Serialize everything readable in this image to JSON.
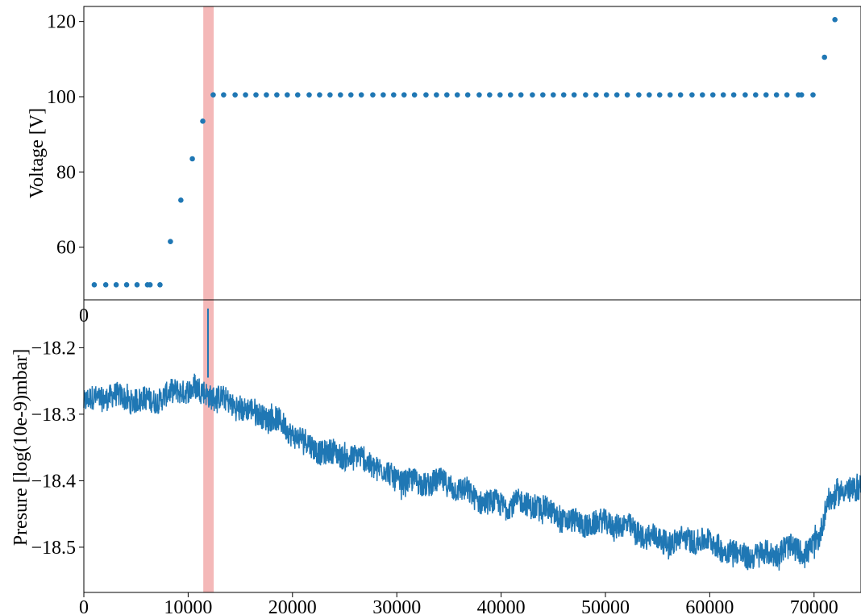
{
  "chart_data": [
    {
      "type": "scatter",
      "ylabel": "Voltage [V]",
      "xlabel": "",
      "xlim": [
        0,
        74500
      ],
      "ylim": [
        46,
        124
      ],
      "y_ticks": [
        "60",
        "80",
        "100",
        "120"
      ],
      "x_ticks_visible": [
        "0"
      ],
      "marker_color": "#1f77b4",
      "points": [
        {
          "x": 1000,
          "y": 50
        },
        {
          "x": 2100,
          "y": 50
        },
        {
          "x": 3100,
          "y": 50
        },
        {
          "x": 4100,
          "y": 50
        },
        {
          "x": 5100,
          "y": 50
        },
        {
          "x": 6100,
          "y": 50
        },
        {
          "x": 6350,
          "y": 50
        },
        {
          "x": 7300,
          "y": 50
        },
        {
          "x": 8300,
          "y": 61.5
        },
        {
          "x": 9300,
          "y": 72.5
        },
        {
          "x": 10400,
          "y": 83.5
        },
        {
          "x": 11400,
          "y": 93.5
        },
        {
          "x": 12400,
          "y": 100.5
        },
        {
          "x": 13400,
          "y": 100.5
        },
        {
          "x": 14500,
          "y": 100.5
        },
        {
          "x": 15500,
          "y": 100.5
        },
        {
          "x": 16500,
          "y": 100.5
        },
        {
          "x": 17500,
          "y": 100.5
        },
        {
          "x": 18500,
          "y": 100.5
        },
        {
          "x": 19500,
          "y": 100.5
        },
        {
          "x": 20500,
          "y": 100.5
        },
        {
          "x": 21600,
          "y": 100.5
        },
        {
          "x": 22600,
          "y": 100.5
        },
        {
          "x": 23600,
          "y": 100.5
        },
        {
          "x": 24600,
          "y": 100.5
        },
        {
          "x": 25600,
          "y": 100.5
        },
        {
          "x": 26600,
          "y": 100.5
        },
        {
          "x": 27700,
          "y": 100.5
        },
        {
          "x": 28700,
          "y": 100.5
        },
        {
          "x": 29700,
          "y": 100.5
        },
        {
          "x": 30700,
          "y": 100.5
        },
        {
          "x": 31700,
          "y": 100.5
        },
        {
          "x": 32800,
          "y": 100.5
        },
        {
          "x": 33800,
          "y": 100.5
        },
        {
          "x": 34800,
          "y": 100.5
        },
        {
          "x": 35800,
          "y": 100.5
        },
        {
          "x": 36800,
          "y": 100.5
        },
        {
          "x": 37900,
          "y": 100.5
        },
        {
          "x": 38900,
          "y": 100.5
        },
        {
          "x": 39900,
          "y": 100.5
        },
        {
          "x": 40900,
          "y": 100.5
        },
        {
          "x": 41900,
          "y": 100.5
        },
        {
          "x": 43000,
          "y": 100.5
        },
        {
          "x": 44000,
          "y": 100.5
        },
        {
          "x": 45000,
          "y": 100.5
        },
        {
          "x": 46000,
          "y": 100.5
        },
        {
          "x": 47000,
          "y": 100.5
        },
        {
          "x": 48100,
          "y": 100.5
        },
        {
          "x": 49100,
          "y": 100.5
        },
        {
          "x": 50100,
          "y": 100.5
        },
        {
          "x": 51100,
          "y": 100.5
        },
        {
          "x": 52100,
          "y": 100.5
        },
        {
          "x": 53200,
          "y": 100.5
        },
        {
          "x": 54200,
          "y": 100.5
        },
        {
          "x": 55200,
          "y": 100.5
        },
        {
          "x": 56200,
          "y": 100.5
        },
        {
          "x": 57200,
          "y": 100.5
        },
        {
          "x": 58300,
          "y": 100.5
        },
        {
          "x": 59300,
          "y": 100.5
        },
        {
          "x": 60300,
          "y": 100.5
        },
        {
          "x": 61300,
          "y": 100.5
        },
        {
          "x": 62300,
          "y": 100.5
        },
        {
          "x": 63400,
          "y": 100.5
        },
        {
          "x": 64400,
          "y": 100.5
        },
        {
          "x": 65400,
          "y": 100.5
        },
        {
          "x": 66400,
          "y": 100.5
        },
        {
          "x": 67400,
          "y": 100.5
        },
        {
          "x": 68500,
          "y": 100.5
        },
        {
          "x": 68800,
          "y": 100.5
        },
        {
          "x": 69900,
          "y": 100.5
        },
        {
          "x": 71000,
          "y": 110.5
        },
        {
          "x": 72000,
          "y": 120.5
        }
      ],
      "highlight_band": {
        "x0": 11450,
        "x1": 12450,
        "color": "#f4b8b8"
      }
    },
    {
      "type": "line",
      "ylabel": "Presure [log(10e-9)mbar]",
      "xlabel": "",
      "xlim": [
        0,
        74500
      ],
      "ylim": [
        -18.568,
        -18.128
      ],
      "y_ticks": [
        "−18.2",
        "−18.3",
        "−18.4",
        "−18.5"
      ],
      "x_ticks": [
        "0",
        "10000",
        "20000",
        "30000",
        "40000",
        "50000",
        "60000",
        "70000"
      ],
      "line_color": "#1f77b4",
      "trend": [
        {
          "x": 0,
          "y": -18.283
        },
        {
          "x": 5000,
          "y": -18.275
        },
        {
          "x": 10000,
          "y": -18.268
        },
        {
          "x": 13000,
          "y": -18.272
        },
        {
          "x": 15000,
          "y": -18.285
        },
        {
          "x": 20000,
          "y": -18.33
        },
        {
          "x": 25000,
          "y": -18.365
        },
        {
          "x": 30000,
          "y": -18.392
        },
        {
          "x": 35000,
          "y": -18.412
        },
        {
          "x": 40000,
          "y": -18.432
        },
        {
          "x": 45000,
          "y": -18.45
        },
        {
          "x": 50000,
          "y": -18.468
        },
        {
          "x": 55000,
          "y": -18.483
        },
        {
          "x": 60000,
          "y": -18.498
        },
        {
          "x": 63000,
          "y": -18.506
        },
        {
          "x": 66500,
          "y": -18.512
        },
        {
          "x": 69500,
          "y": -18.505
        },
        {
          "x": 70500,
          "y": -18.485
        },
        {
          "x": 71300,
          "y": -18.42
        },
        {
          "x": 74500,
          "y": -18.41
        }
      ],
      "noise_amplitude": 0.04,
      "spike": {
        "x": 11900,
        "y_top": -18.141,
        "y_bottom": -18.245
      },
      "highlight_band": {
        "x0": 11450,
        "x1": 12450,
        "color": "#f4b8b8"
      }
    }
  ]
}
